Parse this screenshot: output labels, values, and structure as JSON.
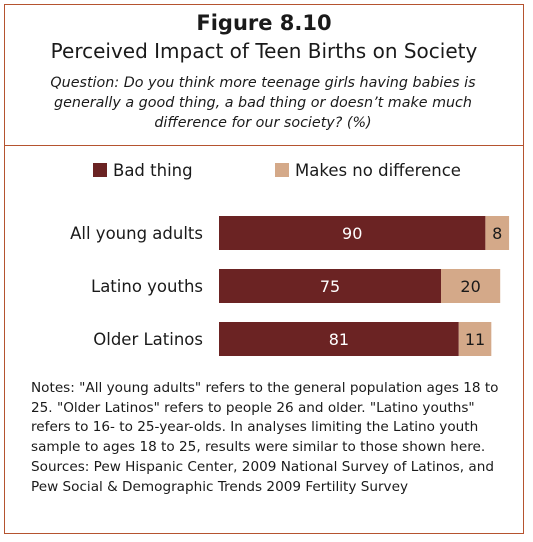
{
  "figure": {
    "number": "Figure 8.10",
    "title": "Perceived Impact of Teen Births on Society",
    "question": "Question: Do you think more teenage girls having babies is generally a good thing, a bad thing or doesn’t make much difference for our society? (%)"
  },
  "chart_data": {
    "type": "bar",
    "orientation": "horizontal",
    "stacked": true,
    "categories": [
      "All young adults",
      "Latino youths",
      "Older Latinos"
    ],
    "series": [
      {
        "name": "Bad thing",
        "values": [
          90,
          75,
          81
        ],
        "color": "#6b2323"
      },
      {
        "name": "Makes no difference",
        "values": [
          8,
          20,
          11
        ],
        "color": "#d4a989"
      }
    ],
    "legend_position": "top",
    "grid": false,
    "xlim": [
      0,
      100
    ]
  },
  "notes": {
    "text": "Notes: \"All young adults\" refers to the general population ages 18 to 25. \"Older Latinos\" refers to people 26 and older. \"Latino youths\" refers to 16- to 25-year-olds. In analyses limiting the Latino youth sample to ages 18 to 25, results were similar to those shown here.",
    "sources": "Sources: Pew Hispanic Center, 2009 National Survey of Latinos, and Pew Social & Demographic Trends 2009 Fertility Survey"
  },
  "colors": {
    "frame": "#b5532f",
    "label_on_dark": "#ffffff",
    "label_on_light": "#1a1a1a"
  }
}
